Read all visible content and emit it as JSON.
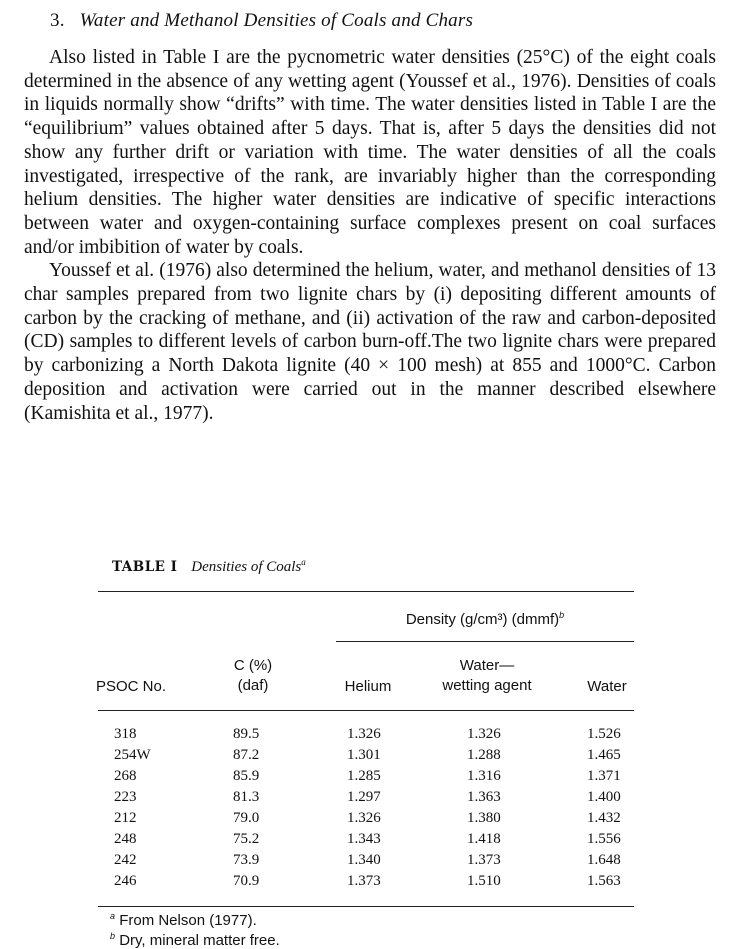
{
  "section": {
    "number": "3.",
    "title": "Water and Methanol Densities of Coals and Chars"
  },
  "paragraphs": [
    "Also listed in Table I are the pycnometric water densities (25°C) of the eight coals determined in the absence of any wetting agent (Youssef et al., 1976). Densities of coals in liquids normally show “drifts” with time. The water densities listed in Table I are the “equilibrium” values obtained after 5 days. That is, after 5 days the densities did not show any further drift or variation with time. The water densities of all the coals investigated, irrespective of the rank, are invariably higher than the corresponding helium densities. The higher water densities are indicative of specific interactions between water and oxygen-containing surface complexes present on coal surfaces and/or imbibition of water by coals.",
    "Youssef et al. (1976) also determined the helium, water, and methanol densities of 13 char samples prepared from two lignite chars by (i) depositing different amounts of carbon by the cracking of methane, and (ii) activation of the raw and carbon-deposited (CD) samples to different levels of carbon burn-off.The two lignite chars were prepared by carbonizing a North Dakota lignite (40 × 100 mesh) at 855 and 1000°C. Carbon deposition and activation were carried out in the manner described elsewhere (Kamishita et al., 1977)."
  ],
  "table": {
    "label": "TABLE I",
    "title": "Densities of Coals",
    "title_note": "a",
    "group_header": "Density (g/cm³) (dmmf)",
    "group_note": "b",
    "columns": {
      "psoc": "PSOC No.",
      "carbon_1": "C (%)",
      "carbon_2": "(daf)",
      "helium": "Helium",
      "wwa_1": "Water—",
      "wwa_2": "wetting agent",
      "water": "Water"
    },
    "rows": [
      {
        "psoc": "318",
        "c": "89.5",
        "helium": "1.326",
        "wwa": "1.326",
        "water": "1.526"
      },
      {
        "psoc": "254W",
        "c": "87.2",
        "helium": "1.301",
        "wwa": "1.288",
        "water": "1.465"
      },
      {
        "psoc": "268",
        "c": "85.9",
        "helium": "1.285",
        "wwa": "1.316",
        "water": "1.371"
      },
      {
        "psoc": "223",
        "c": "81.3",
        "helium": "1.297",
        "wwa": "1.363",
        "water": "1.400"
      },
      {
        "psoc": "212",
        "c": "79.0",
        "helium": "1.326",
        "wwa": "1.380",
        "water": "1.432"
      },
      {
        "psoc": "248",
        "c": "75.2",
        "helium": "1.343",
        "wwa": "1.418",
        "water": "1.556"
      },
      {
        "psoc": "242",
        "c": "73.9",
        "helium": "1.340",
        "wwa": "1.373",
        "water": "1.648"
      },
      {
        "psoc": "246",
        "c": "70.9",
        "helium": "1.373",
        "wwa": "1.510",
        "water": "1.563"
      }
    ],
    "footnotes": [
      {
        "mark": "a",
        "text": "From Nelson (1977)."
      },
      {
        "mark": "b",
        "text": "Dry, mineral matter free."
      }
    ]
  }
}
